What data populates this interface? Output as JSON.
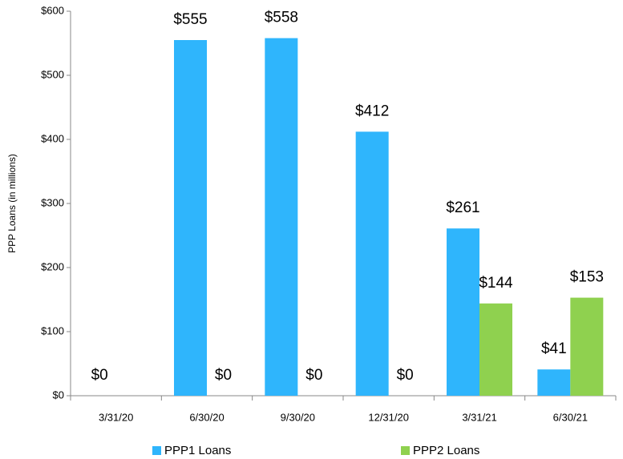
{
  "chart_data": {
    "type": "bar",
    "y_label": "PPP Loans (in millions)",
    "categories": [
      "3/31/20",
      "6/30/20",
      "9/30/20",
      "12/31/20",
      "3/31/21",
      "6/30/21"
    ],
    "series": [
      {
        "name": "PPP1 Loans",
        "color": "#2fb5fc",
        "values": [
          0,
          555,
          558,
          412,
          261,
          41
        ],
        "value_labels": [
          "$0",
          "$555",
          "$558",
          "$412",
          "$261",
          "$41"
        ]
      },
      {
        "name": "PPP2 Loans",
        "color": "#8fd14f",
        "values": [
          0,
          0,
          0,
          0,
          144,
          153
        ],
        "value_labels": [
          null,
          "$0",
          "$0",
          "$0",
          "$144",
          "$153"
        ]
      }
    ],
    "ylim": [
      0,
      600
    ],
    "yticks": [
      {
        "value": 0,
        "label": "$0"
      },
      {
        "value": 100,
        "label": "$100"
      },
      {
        "value": 200,
        "label": "$200"
      },
      {
        "value": 300,
        "label": "$300"
      },
      {
        "value": 400,
        "label": "$400"
      },
      {
        "value": 500,
        "label": "$500"
      },
      {
        "value": 600,
        "label": "$600"
      }
    ],
    "legend": "bottom"
  }
}
